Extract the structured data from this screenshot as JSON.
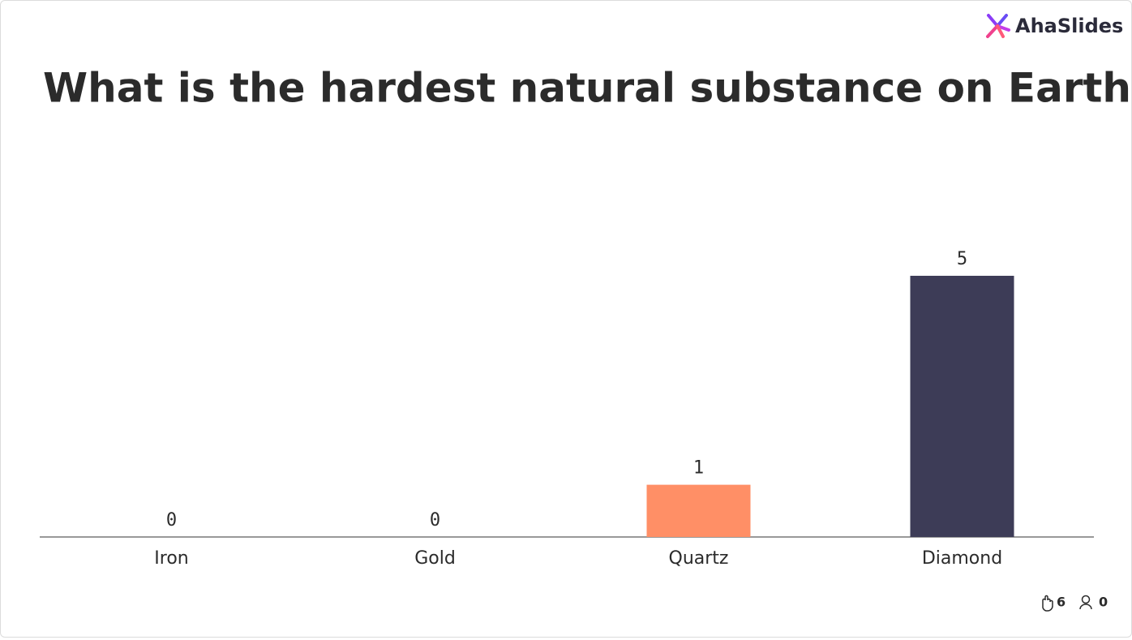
{
  "brand": "AhaSlides",
  "chart_data": {
    "type": "bar",
    "title": "What is the hardest natural substance on Earth?",
    "categories": [
      "Iron",
      "Gold",
      "Quartz",
      "Diamond"
    ],
    "values": [
      0,
      0,
      1,
      5
    ],
    "colors": [
      "#3d3c57",
      "#3d3c57",
      "#ff8f66",
      "#3d3c57"
    ]
  },
  "footer": {
    "reactions": 6,
    "participants": 0
  }
}
